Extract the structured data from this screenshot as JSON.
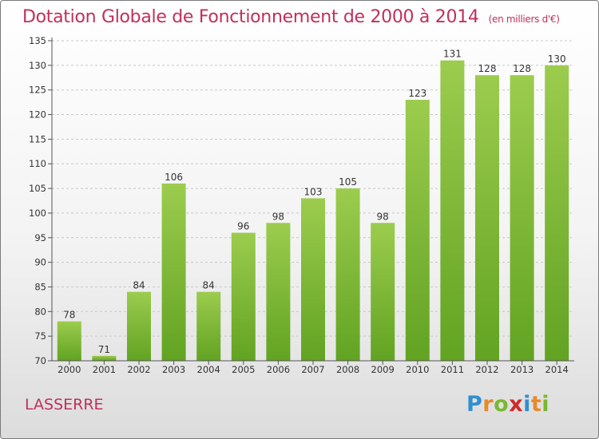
{
  "title": "Dotation Globale de Fonctionnement de 2000 à 2014",
  "unit": "(en milliers d'€)",
  "commune": "LASSERRE",
  "logo": {
    "letters": [
      "P",
      "r",
      "o",
      "x",
      "i",
      "t",
      "i"
    ],
    "colors": [
      "#2f8fd0",
      "#e8892a",
      "#7ab830",
      "#d02a2a",
      "#2f8fd0",
      "#e8892a",
      "#7ab830"
    ]
  },
  "colors": {
    "bar_top": "#9ccc4e",
    "bar_bottom": "#62a322",
    "title": "#c0305a"
  },
  "chart_data": {
    "type": "bar",
    "categories": [
      "2000",
      "2001",
      "2002",
      "2003",
      "2004",
      "2005",
      "2006",
      "2007",
      "2008",
      "2009",
      "2010",
      "2011",
      "2012",
      "2013",
      "2014"
    ],
    "values": [
      78,
      71,
      84,
      106,
      84,
      96,
      98,
      103,
      105,
      98,
      123,
      131,
      128,
      128,
      130
    ],
    "title": "Dotation Globale de Fonctionnement de 2000 à 2014",
    "xlabel": "",
    "ylabel": "",
    "ylim": [
      70,
      135
    ],
    "yticks": [
      70,
      75,
      80,
      85,
      90,
      95,
      100,
      105,
      110,
      115,
      120,
      125,
      130,
      135
    ],
    "grid": true,
    "data_labels": true
  }
}
